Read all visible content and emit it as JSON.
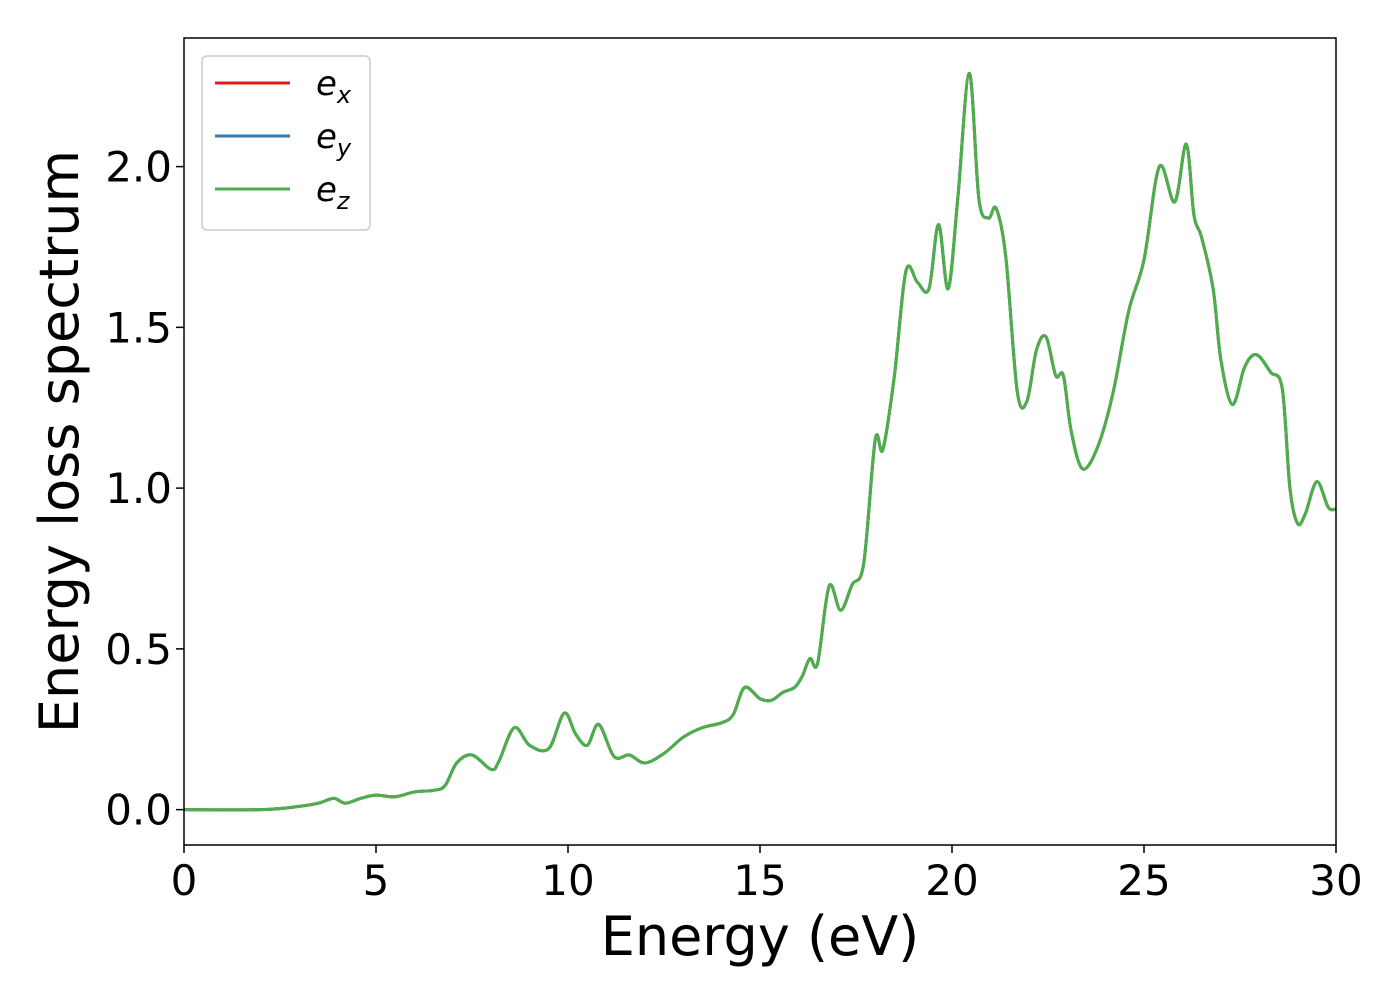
{
  "chart_data": {
    "type": "line",
    "xlabel": "Energy (eV)",
    "ylabel": "Energy loss spectrum",
    "xlim": [
      0,
      30
    ],
    "ylim": [
      -0.11,
      2.4
    ],
    "grid": false,
    "legend_position": "top-left",
    "x_ticks": [
      0,
      5,
      10,
      15,
      20,
      25,
      30
    ],
    "x_tick_labels": [
      "0",
      "5",
      "10",
      "15",
      "20",
      "25",
      "30"
    ],
    "y_ticks": [
      0.0,
      0.5,
      1.0,
      1.5,
      2.0
    ],
    "y_tick_labels": [
      "0.0",
      "0.5",
      "1.0",
      "1.5",
      "2.0"
    ],
    "series": [
      {
        "name": "e",
        "subscript": "x",
        "color": "#e41a1c"
      },
      {
        "name": "e",
        "subscript": "y",
        "color": "#377eb8"
      },
      {
        "name": "e",
        "subscript": "z",
        "color": "#4daf4a"
      }
    ],
    "x": [
      0,
      2,
      3,
      3.5,
      3.9,
      4.2,
      4.6,
      5.0,
      5.5,
      6.0,
      6.5,
      6.8,
      7.1,
      7.5,
      8.0,
      8.2,
      8.6,
      9.0,
      9.5,
      9.9,
      10.2,
      10.5,
      10.8,
      11.2,
      11.6,
      12.0,
      12.5,
      13.0,
      13.5,
      14.0,
      14.3,
      14.6,
      15.0,
      15.3,
      15.6,
      15.9,
      16.1,
      16.3,
      16.5,
      16.8,
      17.1,
      17.4,
      17.7,
      18.0,
      18.2,
      18.5,
      18.8,
      19.1,
      19.4,
      19.65,
      19.9,
      20.15,
      20.45,
      20.7,
      20.95,
      21.15,
      21.4,
      21.7,
      21.95,
      22.2,
      22.45,
      22.7,
      22.9,
      23.1,
      23.4,
      23.8,
      24.2,
      24.6,
      25.0,
      25.4,
      25.8,
      26.1,
      26.3,
      26.5,
      26.8,
      27.0,
      27.3,
      27.6,
      27.8,
      28.0,
      28.3,
      28.6,
      28.8,
      29.0,
      29.2,
      29.5,
      29.8,
      30.0
    ],
    "y": [
      0.0,
      0.0,
      0.01,
      0.02,
      0.035,
      0.02,
      0.035,
      0.045,
      0.04,
      0.055,
      0.06,
      0.075,
      0.145,
      0.17,
      0.125,
      0.15,
      0.255,
      0.2,
      0.19,
      0.3,
      0.235,
      0.2,
      0.265,
      0.165,
      0.17,
      0.145,
      0.175,
      0.225,
      0.255,
      0.27,
      0.295,
      0.38,
      0.345,
      0.34,
      0.365,
      0.38,
      0.415,
      0.47,
      0.455,
      0.695,
      0.62,
      0.7,
      0.765,
      1.15,
      1.12,
      1.35,
      1.675,
      1.64,
      1.62,
      1.82,
      1.62,
      1.9,
      2.29,
      1.9,
      1.84,
      1.87,
      1.72,
      1.3,
      1.27,
      1.43,
      1.47,
      1.35,
      1.35,
      1.18,
      1.06,
      1.13,
      1.3,
      1.55,
      1.71,
      2.0,
      1.89,
      2.07,
      1.85,
      1.78,
      1.62,
      1.4,
      1.26,
      1.37,
      1.41,
      1.41,
      1.36,
      1.31,
      1.0,
      0.89,
      0.92,
      1.02,
      0.94,
      0.935
    ]
  }
}
